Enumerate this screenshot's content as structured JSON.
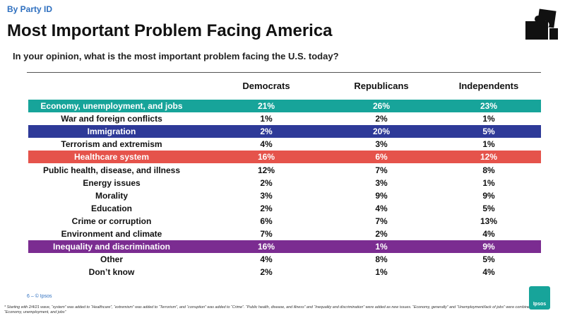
{
  "header": {
    "section": "By Party ID",
    "title": "Most Important Problem Facing America",
    "question": "In your opinion, what is the most important problem facing the U.S. today?"
  },
  "table": {
    "columns": [
      "Democrats",
      "Republicans",
      "Independents"
    ],
    "rows": [
      {
        "cells": [
          "Economy, unemployment, and jobs",
          "21%",
          "26%",
          "23%"
        ],
        "color": "#17a49a"
      },
      {
        "cells": [
          "War and foreign conflicts",
          "1%",
          "2%",
          "1%"
        ]
      },
      {
        "cells": [
          "Immigration",
          "2%",
          "20%",
          "5%"
        ],
        "color": "#2e3a98"
      },
      {
        "cells": [
          "Terrorism and extremism",
          "4%",
          "3%",
          "1%"
        ]
      },
      {
        "cells": [
          "Healthcare system",
          "16%",
          "6%",
          "12%"
        ],
        "color": "#e5534b"
      },
      {
        "cells": [
          "Public health, disease, and illness",
          "12%",
          "7%",
          "8%"
        ]
      },
      {
        "cells": [
          "Energy issues",
          "2%",
          "3%",
          "1%"
        ]
      },
      {
        "cells": [
          "Morality",
          "3%",
          "9%",
          "9%"
        ]
      },
      {
        "cells": [
          "Education",
          "2%",
          "4%",
          "5%"
        ]
      },
      {
        "cells": [
          "Crime or corruption",
          "6%",
          "7%",
          "13%"
        ]
      },
      {
        "cells": [
          "Environment and climate",
          "7%",
          "2%",
          "4%"
        ]
      },
      {
        "cells": [
          "Inequality and discrimination",
          "16%",
          "1%",
          "9%"
        ],
        "color": "#7b2c91"
      },
      {
        "cells": [
          "Other",
          "4%",
          "8%",
          "5%"
        ]
      },
      {
        "cells": [
          "Don’t know",
          "2%",
          "1%",
          "4%"
        ]
      }
    ]
  },
  "footer": {
    "page": "6 –  © Ipsos",
    "logo": "Ipsos",
    "note": "* Starting with 2/4/21 wave, “system” was added to “Healthcare”, “extremism” was added to “Terrorism”, and “corruption” was added to “Crime”. “Public health, disease, and illness” and “Inequality and discrimination” were added as new issues. “Economy, generally” and “Unemployment/lack of jobs” were combined to create “Economy, unemployment, and jobs”"
  }
}
